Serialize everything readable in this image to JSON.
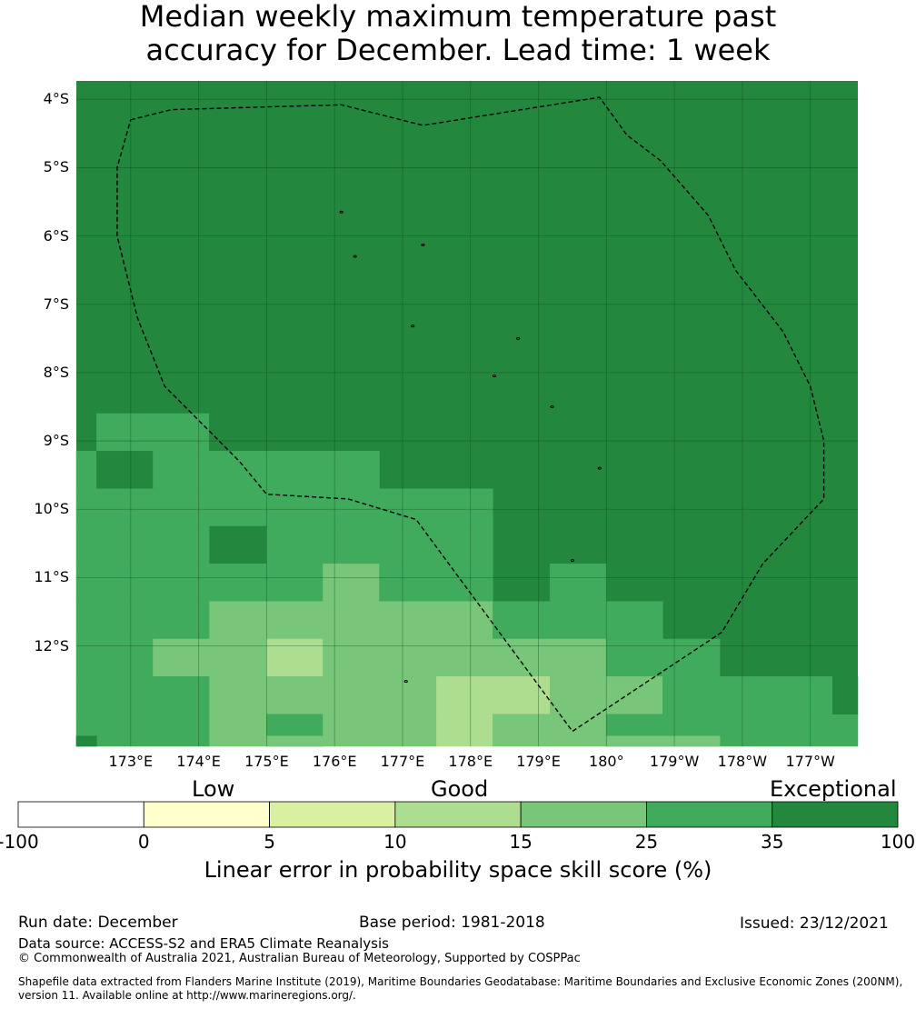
{
  "title_line1": "Median weekly maximum temperature past",
  "title_line2": "accuracy for December. Lead time: 1 week",
  "map": {
    "lon_range": [
      172.2,
      183.7
    ],
    "lat_range": [
      -13.47,
      -3.73
    ],
    "background_color": "#23873e",
    "grid_lons": [
      173,
      174,
      175,
      176,
      177,
      178,
      179,
      180,
      181,
      182,
      183
    ],
    "grid_lats": [
      -4,
      -5,
      -6,
      -7,
      -8,
      -9,
      -10,
      -11,
      -12
    ],
    "lat_labels": [
      "4°S",
      "5°S",
      "6°S",
      "7°S",
      "8°S",
      "9°S",
      "10°S",
      "11°S",
      "12°S"
    ],
    "lon_labels": [
      "173°E",
      "174°E",
      "175°E",
      "176°E",
      "177°E",
      "178°E",
      "179°E",
      "180°",
      "179°W",
      "178°W",
      "177°W"
    ],
    "cells": [
      {
        "lon": 172.2,
        "lat": -9.7,
        "dlon": 0.3,
        "dlat": 0.55,
        "cat": 5
      },
      {
        "lon": 172.5,
        "lat": -9.15,
        "dlon": 1.65,
        "dlat": 0.55,
        "cat": 5
      },
      {
        "lon": 172.5,
        "lat": -9.7,
        "dlon": 0.83,
        "dlat": 0.55,
        "cat": 6
      },
      {
        "lon": 173.33,
        "lat": -9.7,
        "dlon": 3.33,
        "dlat": 0.55,
        "cat": 5
      },
      {
        "lon": 172.2,
        "lat": -10.25,
        "dlon": 4.46,
        "dlat": 0.55,
        "cat": 5
      },
      {
        "lon": 176.66,
        "lat": -10.25,
        "dlon": 1.67,
        "dlat": 0.55,
        "cat": 5
      },
      {
        "lon": 172.2,
        "lat": -10.8,
        "dlon": 1.96,
        "dlat": 0.55,
        "cat": 5
      },
      {
        "lon": 174.16,
        "lat": -10.8,
        "dlon": 0.84,
        "dlat": 0.55,
        "cat": 6
      },
      {
        "lon": 175.0,
        "lat": -10.8,
        "dlon": 3.33,
        "dlat": 0.55,
        "cat": 5
      },
      {
        "lon": 172.2,
        "lat": -11.35,
        "dlon": 3.63,
        "dlat": 0.55,
        "cat": 5
      },
      {
        "lon": 175.83,
        "lat": -11.35,
        "dlon": 0.83,
        "dlat": 0.55,
        "cat": 4
      },
      {
        "lon": 176.66,
        "lat": -11.35,
        "dlon": 1.67,
        "dlat": 0.55,
        "cat": 5
      },
      {
        "lon": 179.17,
        "lat": -11.35,
        "dlon": 0.83,
        "dlat": 0.55,
        "cat": 5
      },
      {
        "lon": 172.2,
        "lat": -11.9,
        "dlon": 1.96,
        "dlat": 0.55,
        "cat": 5
      },
      {
        "lon": 174.16,
        "lat": -11.9,
        "dlon": 4.17,
        "dlat": 0.55,
        "cat": 4
      },
      {
        "lon": 178.33,
        "lat": -11.9,
        "dlon": 2.5,
        "dlat": 0.55,
        "cat": 5
      },
      {
        "lon": 172.2,
        "lat": -12.45,
        "dlon": 1.13,
        "dlat": 0.55,
        "cat": 5
      },
      {
        "lon": 173.33,
        "lat": -12.45,
        "dlon": 1.67,
        "dlat": 0.55,
        "cat": 4
      },
      {
        "lon": 175.0,
        "lat": -12.45,
        "dlon": 0.83,
        "dlat": 0.55,
        "cat": 3
      },
      {
        "lon": 175.83,
        "lat": -12.45,
        "dlon": 4.17,
        "dlat": 0.55,
        "cat": 4
      },
      {
        "lon": 180.0,
        "lat": -12.45,
        "dlon": 1.67,
        "dlat": 0.55,
        "cat": 5
      },
      {
        "lon": 172.2,
        "lat": -13.0,
        "dlon": 1.96,
        "dlat": 0.55,
        "cat": 5
      },
      {
        "lon": 174.16,
        "lat": -13.0,
        "dlon": 3.34,
        "dlat": 0.55,
        "cat": 4
      },
      {
        "lon": 177.5,
        "lat": -13.0,
        "dlon": 1.67,
        "dlat": 0.55,
        "cat": 3
      },
      {
        "lon": 179.17,
        "lat": -13.0,
        "dlon": 0.83,
        "dlat": 0.55,
        "cat": 4
      },
      {
        "lon": 180.0,
        "lat": -13.0,
        "dlon": 0.83,
        "dlat": 0.55,
        "cat": 4
      },
      {
        "lon": 180.83,
        "lat": -13.0,
        "dlon": 2.5,
        "dlat": 0.55,
        "cat": 5
      },
      {
        "lon": 172.2,
        "lat": -13.47,
        "dlon": 1.96,
        "dlat": 0.47,
        "cat": 5
      },
      {
        "lon": 174.16,
        "lat": -13.47,
        "dlon": 0.84,
        "dlat": 0.47,
        "cat": 4
      },
      {
        "lon": 175.0,
        "lat": -13.47,
        "dlon": 0.83,
        "dlat": 0.47,
        "cat": 5
      },
      {
        "lon": 175.83,
        "lat": -13.47,
        "dlon": 1.67,
        "dlat": 0.47,
        "cat": 4
      },
      {
        "lon": 177.5,
        "lat": -13.47,
        "dlon": 0.83,
        "dlat": 0.47,
        "cat": 3
      },
      {
        "lon": 178.33,
        "lat": -13.47,
        "dlon": 0.84,
        "dlat": 0.47,
        "cat": 4
      },
      {
        "lon": 179.17,
        "lat": -13.47,
        "dlon": 0.83,
        "dlat": 0.47,
        "cat": 4
      },
      {
        "lon": 180.0,
        "lat": -13.47,
        "dlon": 2.5,
        "dlat": 0.47,
        "cat": 5
      },
      {
        "lon": 180.0,
        "lat": -13.47,
        "dlon": 1.67,
        "dlat": 0.15,
        "cat": 4
      },
      {
        "lon": 182.5,
        "lat": -13.47,
        "dlon": 1.2,
        "dlat": 0.47,
        "cat": 5
      },
      {
        "lon": 183.33,
        "lat": -13.0,
        "dlon": 0.37,
        "dlat": 0.55,
        "cat": 6
      },
      {
        "lon": 172.2,
        "lat": -13.47,
        "dlon": 0.3,
        "dlat": 0.15,
        "cat": 6
      },
      {
        "lon": 175.0,
        "lat": -13.47,
        "dlon": 0.83,
        "dlat": 0.15,
        "cat": 4
      }
    ],
    "eez_boundary": [
      [
        173.0,
        -4.3
      ],
      [
        173.6,
        -4.15
      ],
      [
        176.1,
        -4.08
      ],
      [
        177.3,
        -4.38
      ],
      [
        179.9,
        -3.97
      ],
      [
        180.3,
        -4.52
      ],
      [
        180.8,
        -4.9
      ],
      [
        181.5,
        -5.7
      ],
      [
        181.9,
        -6.5
      ],
      [
        182.6,
        -7.4
      ],
      [
        183.0,
        -8.2
      ],
      [
        183.2,
        -9.0
      ],
      [
        183.2,
        -9.85
      ],
      [
        182.3,
        -10.8
      ],
      [
        181.7,
        -11.8
      ],
      [
        179.5,
        -13.25
      ],
      [
        177.2,
        -10.15
      ],
      [
        176.2,
        -9.85
      ],
      [
        175.0,
        -9.78
      ],
      [
        174.6,
        -9.3
      ],
      [
        174.2,
        -8.9
      ],
      [
        173.5,
        -8.2
      ],
      [
        173.1,
        -7.2
      ],
      [
        172.8,
        -6.0
      ],
      [
        172.8,
        -5.0
      ],
      [
        173.0,
        -4.3
      ]
    ],
    "islands": [
      [
        176.1,
        -5.65
      ],
      [
        176.3,
        -6.3
      ],
      [
        177.3,
        -6.13
      ],
      [
        177.15,
        -7.32
      ],
      [
        178.7,
        -7.5
      ],
      [
        178.35,
        -8.05
      ],
      [
        179.2,
        -8.5
      ],
      [
        179.9,
        -9.4
      ],
      [
        179.5,
        -10.75
      ],
      [
        177.05,
        -12.52
      ]
    ]
  },
  "colorbar": {
    "bounds": [
      -100,
      0,
      5,
      10,
      15,
      25,
      35,
      100
    ],
    "tick_labels": [
      "-100",
      "0",
      "5",
      "10",
      "15",
      "25",
      "35",
      "100"
    ],
    "colors": [
      "#ffffff",
      "#ffffcc",
      "#d9f0a3",
      "#addd8e",
      "#78c679",
      "#41ab5d",
      "#23873e"
    ],
    "category_labels": [
      "Low",
      "Good",
      "Exceptional"
    ],
    "label": "Linear error in probability space skill score (%)"
  },
  "footer": {
    "run_date": "Run date: December",
    "base_period": "Base period: 1981-2018",
    "issued": "Issued: 23/12/2021",
    "data_source": "Data source: ACCESS-S2 and ERA5 Climate Reanalysis",
    "copyright": "© Commonwealth of Australia 2021, Australian Bureau of Meteorology, Supported by COSPPac",
    "shapefile_line1": "Shapefile data extracted from Flanders Marine Institute (2019), Maritime Boundaries Geodatabase: Maritime Boundaries and Exclusive Economic Zones (200NM),",
    "shapefile_line2": "version 11. Available online at http://www.marineregions.org/."
  }
}
